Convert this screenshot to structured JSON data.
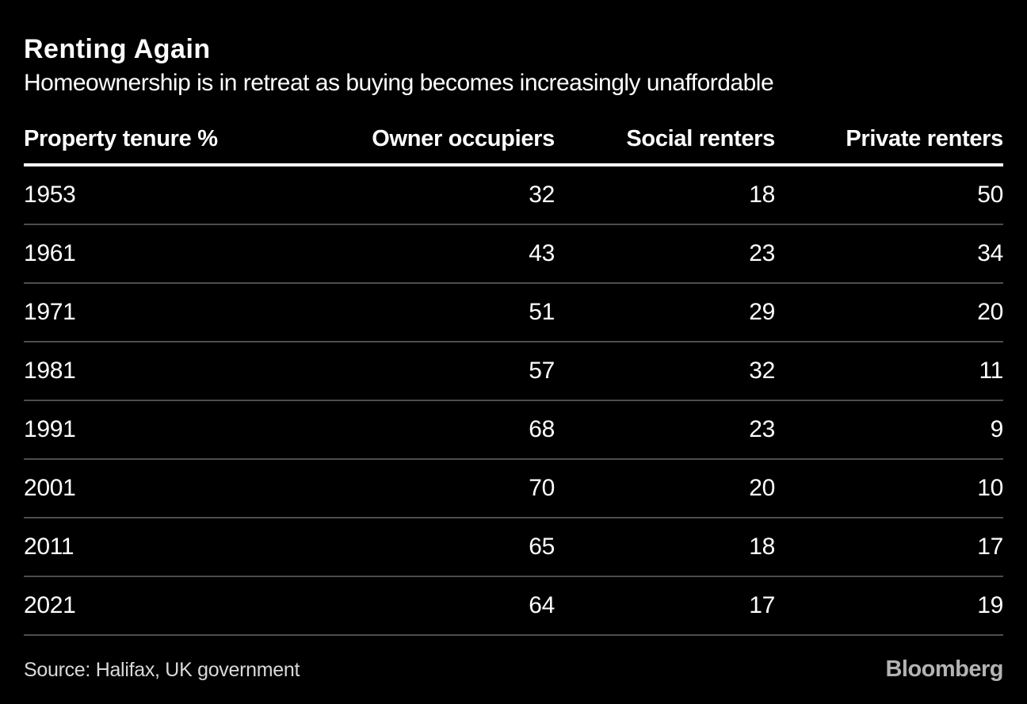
{
  "colors": {
    "background": "#000000",
    "text": "#ffffff",
    "row_divider": "#4d4d4d",
    "header_rule": "#ffffff",
    "source_text": "#d9d9d9",
    "logo_gray": "#b3b3b3"
  },
  "chart_data": {
    "type": "table",
    "title": "Renting Again",
    "subtitle": "Homeownership is in retreat as buying becomes increasingly unaffordable",
    "columns": [
      "Property tenure %",
      "Owner occupiers",
      "Social renters",
      "Private renters"
    ],
    "categories": [
      "1953",
      "1961",
      "1971",
      "1981",
      "1991",
      "2001",
      "2011",
      "2021"
    ],
    "series": [
      {
        "name": "Owner occupiers",
        "values": [
          32,
          43,
          51,
          57,
          68,
          70,
          65,
          64
        ]
      },
      {
        "name": "Social renters",
        "values": [
          18,
          23,
          29,
          32,
          23,
          20,
          18,
          17
        ]
      },
      {
        "name": "Private renters",
        "values": [
          50,
          34,
          20,
          11,
          9,
          10,
          17,
          19
        ]
      }
    ],
    "rows": [
      {
        "year": "1953",
        "values": [
          "32",
          "18",
          "50"
        ]
      },
      {
        "year": "1961",
        "values": [
          "43",
          "23",
          "34"
        ]
      },
      {
        "year": "1971",
        "values": [
          "51",
          "29",
          "20"
        ]
      },
      {
        "year": "1981",
        "values": [
          "57",
          "32",
          "11"
        ]
      },
      {
        "year": "1991",
        "values": [
          "68",
          "23",
          "9"
        ]
      },
      {
        "year": "2001",
        "values": [
          "70",
          "20",
          "10"
        ]
      },
      {
        "year": "2011",
        "values": [
          "65",
          "18",
          "17"
        ]
      },
      {
        "year": "2021",
        "values": [
          "64",
          "17",
          "19"
        ]
      }
    ],
    "source": "Source: Halifax, UK government",
    "brand": "Bloomberg",
    "layout": {
      "grid": "off",
      "legend": "none",
      "units": "percent"
    }
  }
}
